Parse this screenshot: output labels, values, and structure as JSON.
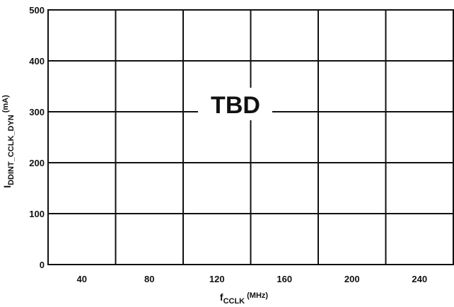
{
  "chart_data": {
    "type": "line",
    "title": "",
    "annotation": "TBD",
    "xlabel": {
      "main": "f",
      "subscript": "CCLK",
      "unit": "(MHz)"
    },
    "ylabel": {
      "main": "I",
      "subscript": "DDINT_CCLK_DYN",
      "unit": "(mA)"
    },
    "xlim": [
      20,
      260
    ],
    "ylim": [
      0,
      500
    ],
    "x_ticks": [
      40,
      80,
      120,
      160,
      200,
      240
    ],
    "x_tick_labels": [
      "40",
      "80",
      "120",
      "160",
      "200",
      "240"
    ],
    "y_ticks": [
      0,
      100,
      200,
      300,
      400,
      500
    ],
    "y_tick_labels": [
      "0",
      "100",
      "200",
      "300",
      "400",
      "500"
    ],
    "x_gridlines": [
      60,
      100,
      140,
      180,
      220
    ],
    "grid": true,
    "series": []
  }
}
